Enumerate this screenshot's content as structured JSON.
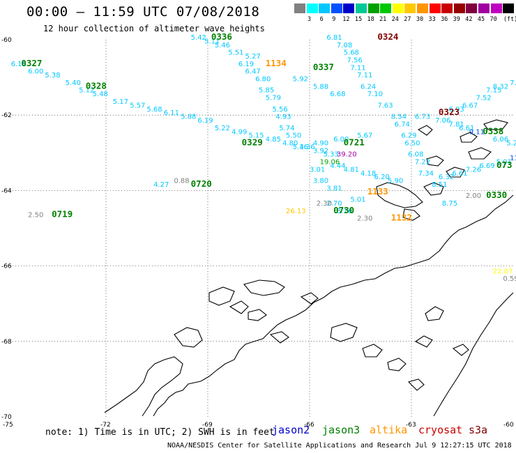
{
  "title": "00:00 – 11:59 UTC 07/08/2018",
  "subtitle": "12 hour collection of altimeter wave heights",
  "colorbar": {
    "unit": "(ft)",
    "colors": [
      "#808080",
      "#00ffff",
      "#00c8ff",
      "#0050ff",
      "#0000c8",
      "#00c896",
      "#00a000",
      "#00c800",
      "#ffff00",
      "#ffc800",
      "#ff9600",
      "#ff0000",
      "#c80000",
      "#960000",
      "#800040",
      "#a000a0",
      "#c000c0",
      "#000000"
    ],
    "labels": [
      "3",
      "6",
      "9",
      "12",
      "15",
      "18",
      "21",
      "24",
      "27",
      "30",
      "33",
      "36",
      "39",
      "42",
      "45",
      "70"
    ]
  },
  "axes": {
    "lat_labels": [
      "-60",
      "-62",
      "-64",
      "-66",
      "-68",
      "-70"
    ],
    "lon_labels": [
      "-75",
      "-72",
      "-69",
      "-66",
      "-63",
      "-60"
    ]
  },
  "map_data": {
    "lon_range": [
      -75,
      -60
    ],
    "lat_range": [
      -70,
      -60
    ],
    "grid": "dotted",
    "coastline": "Antarctic Peninsula and South Shetland Islands, black outline",
    "time_labels": [
      {
        "text": "0336",
        "lon": -68.9,
        "lat": -60.0,
        "color": "#008000"
      },
      {
        "text": "0324",
        "lon": -64.0,
        "lat": -60.0,
        "color": "#800000"
      },
      {
        "text": "0327",
        "lon": -74.5,
        "lat": -60.7,
        "color": "#008000"
      },
      {
        "text": "0328",
        "lon": -72.6,
        "lat": -61.3,
        "color": "#008000"
      },
      {
        "text": "1134",
        "lon": -67.3,
        "lat": -60.7,
        "color": "#ff9600"
      },
      {
        "text": "0337",
        "lon": -65.9,
        "lat": -60.8,
        "color": "#008000"
      },
      {
        "text": "0323",
        "lon": -62.2,
        "lat": -62.0,
        "color": "#800000"
      },
      {
        "text": "0338",
        "lon": -60.9,
        "lat": -62.5,
        "color": "#008000"
      },
      {
        "text": "0329",
        "lon": -68.0,
        "lat": -62.8,
        "color": "#008000"
      },
      {
        "text": "0721",
        "lon": -65.0,
        "lat": -62.8,
        "color": "#008000"
      },
      {
        "text": "0720",
        "lon": -69.5,
        "lat": -63.9,
        "color": "#008000"
      },
      {
        "text": "0719",
        "lon": -73.6,
        "lat": -64.7,
        "color": "#008000"
      },
      {
        "text": "1133",
        "lon": -64.3,
        "lat": -64.1,
        "color": "#ff9600"
      },
      {
        "text": "0730",
        "lon": -65.3,
        "lat": -64.6,
        "color": "#008000"
      },
      {
        "text": "1132",
        "lon": -63.6,
        "lat": -64.8,
        "color": "#ff9600"
      },
      {
        "text": "0330",
        "lon": -60.8,
        "lat": -64.2,
        "color": "#008000"
      },
      {
        "text": "073",
        "lon": -60.2,
        "lat": -63.4,
        "color": "#008000"
      }
    ],
    "wave_heights": [
      {
        "v": "5.42",
        "lon": -69.5,
        "lat": -60.0,
        "color": "#00c8ff"
      },
      {
        "v": "5.11",
        "lon": -69.1,
        "lat": -60.1,
        "color": "#00c8ff"
      },
      {
        "v": "5.46",
        "lon": -68.8,
        "lat": -60.2,
        "color": "#00c8ff"
      },
      {
        "v": "5.51",
        "lon": -68.4,
        "lat": -60.4,
        "color": "#00c8ff"
      },
      {
        "v": "5.27",
        "lon": -67.9,
        "lat": -60.5,
        "color": "#00c8ff"
      },
      {
        "v": "6.19",
        "lon": -68.1,
        "lat": -60.7,
        "color": "#00c8ff"
      },
      {
        "v": "6.47",
        "lon": -67.9,
        "lat": -60.9,
        "color": "#00c8ff"
      },
      {
        "v": "6.80",
        "lon": -67.6,
        "lat": -61.1,
        "color": "#00c8ff"
      },
      {
        "v": "5.85",
        "lon": -67.5,
        "lat": -61.4,
        "color": "#00c8ff"
      },
      {
        "v": "5.79",
        "lon": -67.3,
        "lat": -61.6,
        "color": "#00c8ff"
      },
      {
        "v": "5.56",
        "lon": -67.1,
        "lat": -61.9,
        "color": "#00c8ff"
      },
      {
        "v": "4.93",
        "lon": -67.0,
        "lat": -62.1,
        "color": "#00c8ff"
      },
      {
        "v": "5.74",
        "lon": -66.9,
        "lat": -62.4,
        "color": "#00c8ff"
      },
      {
        "v": "5.50",
        "lon": -66.7,
        "lat": -62.6,
        "color": "#00c8ff"
      },
      {
        "v": "5.36",
        "lon": -66.5,
        "lat": -62.9,
        "color": "#00c8ff"
      },
      {
        "v": "6.18",
        "lon": -74.8,
        "lat": -60.7,
        "color": "#00c8ff"
      },
      {
        "v": "6.00",
        "lon": -74.3,
        "lat": -60.9,
        "color": "#00c8ff"
      },
      {
        "v": "5.38",
        "lon": -73.8,
        "lat": -61.0,
        "color": "#00c8ff"
      },
      {
        "v": "5.40",
        "lon": -73.2,
        "lat": -61.2,
        "color": "#00c8ff"
      },
      {
        "v": "5.12",
        "lon": -72.8,
        "lat": -61.4,
        "color": "#00c8ff"
      },
      {
        "v": "5.48",
        "lon": -72.4,
        "lat": -61.5,
        "color": "#00c8ff"
      },
      {
        "v": "5.17",
        "lon": -71.8,
        "lat": -61.7,
        "color": "#00c8ff"
      },
      {
        "v": "5.57",
        "lon": -71.3,
        "lat": -61.8,
        "color": "#00c8ff"
      },
      {
        "v": "5.68",
        "lon": -70.8,
        "lat": -61.9,
        "color": "#00c8ff"
      },
      {
        "v": "6.11",
        "lon": -70.3,
        "lat": -62.0,
        "color": "#00c8ff"
      },
      {
        "v": "5.88",
        "lon": -69.8,
        "lat": -62.1,
        "color": "#00c8ff"
      },
      {
        "v": "6.19",
        "lon": -69.3,
        "lat": -62.2,
        "color": "#00c8ff"
      },
      {
        "v": "5.22",
        "lon": -68.8,
        "lat": -62.4,
        "color": "#00c8ff"
      },
      {
        "v": "4.99",
        "lon": -68.3,
        "lat": -62.5,
        "color": "#00c8ff"
      },
      {
        "v": "5.15",
        "lon": -67.8,
        "lat": -62.6,
        "color": "#00c8ff"
      },
      {
        "v": "4.85",
        "lon": -67.3,
        "lat": -62.7,
        "color": "#00c8ff"
      },
      {
        "v": "4.80",
        "lon": -66.8,
        "lat": -62.8,
        "color": "#00c8ff"
      },
      {
        "v": "4.36",
        "lon": -66.3,
        "lat": -62.9,
        "color": "#00c8ff"
      },
      {
        "v": "3.92",
        "lon": -65.9,
        "lat": -63.0,
        "color": "#00c8ff"
      },
      {
        "v": "5.33",
        "lon": -65.6,
        "lat": -63.1,
        "color": "#00c8ff"
      },
      {
        "v": "39.20",
        "lon": -65.2,
        "lat": -63.1,
        "color": "#a000a0"
      },
      {
        "v": "6.81",
        "lon": -65.5,
        "lat": -60.0,
        "color": "#00c8ff"
      },
      {
        "v": "7.08",
        "lon": -65.2,
        "lat": -60.2,
        "color": "#00c8ff"
      },
      {
        "v": "5.68",
        "lon": -65.0,
        "lat": -60.4,
        "color": "#00c8ff"
      },
      {
        "v": "7.56",
        "lon": -64.9,
        "lat": -60.6,
        "color": "#00c8ff"
      },
      {
        "v": "7.11",
        "lon": -64.8,
        "lat": -60.8,
        "color": "#00c8ff"
      },
      {
        "v": "7.11",
        "lon": -64.6,
        "lat": -61.0,
        "color": "#00c8ff"
      },
      {
        "v": "6.24",
        "lon": -64.5,
        "lat": -61.3,
        "color": "#00c8ff"
      },
      {
        "v": "7.10",
        "lon": -64.3,
        "lat": -61.5,
        "color": "#00c8ff"
      },
      {
        "v": "7.63",
        "lon": -64.0,
        "lat": -61.8,
        "color": "#00c8ff"
      },
      {
        "v": "8.54",
        "lon": -63.6,
        "lat": -62.1,
        "color": "#00c8ff"
      },
      {
        "v": "6.74",
        "lon": -63.5,
        "lat": -62.3,
        "color": "#00c8ff"
      },
      {
        "v": "6.29",
        "lon": -63.3,
        "lat": -62.6,
        "color": "#00c8ff"
      },
      {
        "v": "6.50",
        "lon": -63.2,
        "lat": -62.8,
        "color": "#00c8ff"
      },
      {
        "v": "6.08",
        "lon": -63.1,
        "lat": -63.1,
        "color": "#00c8ff"
      },
      {
        "v": "7.22",
        "lon": -62.9,
        "lat": -63.3,
        "color": "#00c8ff"
      },
      {
        "v": "7.34",
        "lon": -62.8,
        "lat": -63.6,
        "color": "#00c8ff"
      },
      {
        "v": "8.51",
        "lon": -62.4,
        "lat": -63.9,
        "color": "#00c8ff"
      },
      {
        "v": "8.75",
        "lon": -62.1,
        "lat": -64.4,
        "color": "#00c8ff"
      },
      {
        "v": "5.92",
        "lon": -66.5,
        "lat": -61.1,
        "color": "#00c8ff"
      },
      {
        "v": "5.88",
        "lon": -65.9,
        "lat": -61.3,
        "color": "#00c8ff"
      },
      {
        "v": "6.68",
        "lon": -65.4,
        "lat": -61.5,
        "color": "#00c8ff"
      },
      {
        "v": "6.73",
        "lon": -62.9,
        "lat": -62.1,
        "color": "#00c8ff"
      },
      {
        "v": "7.06",
        "lon": -62.3,
        "lat": -62.2,
        "color": "#00c8ff"
      },
      {
        "v": "7.81",
        "lon": -61.9,
        "lat": -62.3,
        "color": "#00c8ff"
      },
      {
        "v": "6.93",
        "lon": -61.9,
        "lat": -61.9,
        "color": "#00c8ff"
      },
      {
        "v": "6.67",
        "lon": -61.5,
        "lat": -61.8,
        "color": "#00c8ff"
      },
      {
        "v": "7.52",
        "lon": -61.1,
        "lat": -61.6,
        "color": "#00c8ff"
      },
      {
        "v": "7.15",
        "lon": -60.8,
        "lat": -61.4,
        "color": "#00c8ff"
      },
      {
        "v": "8.32",
        "lon": -60.6,
        "lat": -61.3,
        "color": "#00c8ff"
      },
      {
        "v": "7.83",
        "lon": -60.1,
        "lat": -61.2,
        "color": "#00c8ff"
      },
      {
        "v": "6.61",
        "lon": -61.6,
        "lat": -62.4,
        "color": "#00c8ff"
      },
      {
        "v": "9.11",
        "lon": -61.3,
        "lat": -62.5,
        "color": "#0050ff"
      },
      {
        "v": "6.06",
        "lon": -60.6,
        "lat": -62.7,
        "color": "#00c8ff"
      },
      {
        "v": "5.24",
        "lon": -60.2,
        "lat": -62.8,
        "color": "#00c8ff"
      },
      {
        "v": "4.90",
        "lon": -65.9,
        "lat": -62.8,
        "color": "#00c8ff"
      },
      {
        "v": "6.00",
        "lon": -65.3,
        "lat": -62.7,
        "color": "#00c8ff"
      },
      {
        "v": "5.67",
        "lon": -64.6,
        "lat": -62.6,
        "color": "#00c8ff"
      },
      {
        "v": "19.06",
        "lon": -65.7,
        "lat": -63.3,
        "color": "#00a000"
      },
      {
        "v": "3.01",
        "lon": -66.0,
        "lat": -63.5,
        "color": "#00c8ff"
      },
      {
        "v": "4.44",
        "lon": -65.4,
        "lat": -63.4,
        "color": "#00c8ff"
      },
      {
        "v": "4.81",
        "lon": -65.0,
        "lat": -63.5,
        "color": "#00c8ff"
      },
      {
        "v": "4.18",
        "lon": -64.5,
        "lat": -63.6,
        "color": "#00c8ff"
      },
      {
        "v": "6.20",
        "lon": -64.1,
        "lat": -63.7,
        "color": "#00c8ff"
      },
      {
        "v": "5.90",
        "lon": -63.7,
        "lat": -63.8,
        "color": "#00c8ff"
      },
      {
        "v": "3.80",
        "lon": -65.9,
        "lat": -63.8,
        "color": "#00c8ff"
      },
      {
        "v": "3.81",
        "lon": -65.5,
        "lat": -64.0,
        "color": "#00c8ff"
      },
      {
        "v": "2.70",
        "lon": -65.5,
        "lat": -64.4,
        "color": "#00c8ff"
      },
      {
        "v": "5.01",
        "lon": -64.8,
        "lat": -64.3,
        "color": "#00c8ff"
      },
      {
        "v": "3.16",
        "lon": -65.2,
        "lat": -64.6,
        "color": "#00c8ff"
      },
      {
        "v": "6.32",
        "lon": -62.2,
        "lat": -63.7,
        "color": "#00c8ff"
      },
      {
        "v": "6.61",
        "lon": -61.8,
        "lat": -63.6,
        "color": "#00c8ff"
      },
      {
        "v": "7.26",
        "lon": -61.4,
        "lat": -63.5,
        "color": "#00c8ff"
      },
      {
        "v": "6.69",
        "lon": -61.0,
        "lat": -63.4,
        "color": "#00c8ff"
      },
      {
        "v": "5.01",
        "lon": -60.5,
        "lat": -63.3,
        "color": "#00c8ff"
      },
      {
        "v": "11.9",
        "lon": -60.1,
        "lat": -63.2,
        "color": "#0050ff"
      },
      {
        "v": "4.27",
        "lon": -70.6,
        "lat": -63.9,
        "color": "#00c8ff"
      },
      {
        "v": "0.88",
        "lon": -70.0,
        "lat": -63.8,
        "color": "#808080"
      },
      {
        "v": "2.50",
        "lon": -74.3,
        "lat": -64.7,
        "color": "#808080"
      },
      {
        "v": "2.30",
        "lon": -65.8,
        "lat": -64.4,
        "color": "#808080"
      },
      {
        "v": "2.30",
        "lon": -64.6,
        "lat": -64.8,
        "color": "#808080"
      },
      {
        "v": "26.13",
        "lon": -66.7,
        "lat": -64.6,
        "color": "#ffc800"
      },
      {
        "v": "2.00",
        "lon": -61.4,
        "lat": -64.2,
        "color": "#808080"
      },
      {
        "v": "22.07",
        "lon": -60.6,
        "lat": -66.2,
        "color": "#ffff00"
      },
      {
        "v": "0.59",
        "lon": -60.3,
        "lat": -66.4,
        "color": "#808080"
      }
    ]
  },
  "note": "note: 1) Time is in UTC; 2) SWH is in feet",
  "satellites": [
    {
      "name": "jason2",
      "color": "#0000c8"
    },
    {
      "name": "jason3",
      "color": "#008000"
    },
    {
      "name": "altika",
      "color": "#ff9600"
    },
    {
      "name": "cryosat",
      "color": "#c80000"
    },
    {
      "name": "s3a",
      "color": "#800000"
    }
  ],
  "credit": "NOAA/NESDIS Center for Satellite Applications and Research   Jul  9 12:27:15 UTC 2018"
}
